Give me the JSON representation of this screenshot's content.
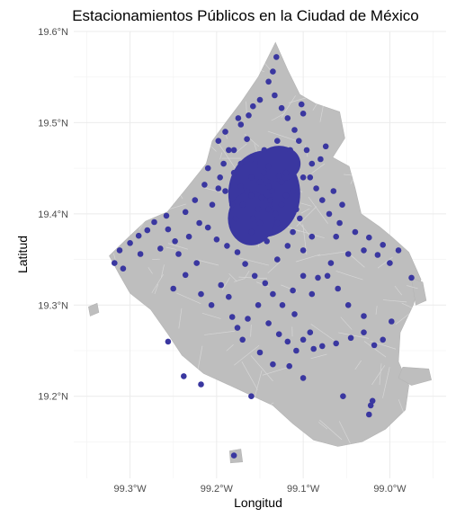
{
  "chart_data": {
    "type": "scatter",
    "title": "Estacionamientos Públicos en la Ciudad de México",
    "xlabel": "Longitud",
    "ylabel": "Latitud",
    "xlim": [
      -99.365,
      -98.935
    ],
    "ylim": [
      19.11,
      19.6
    ],
    "x_ticks": [
      -99.3,
      -99.2,
      -99.1,
      -99.0
    ],
    "x_tick_labels": [
      "99.3°W",
      "99.2°W",
      "99.1°W",
      "99.0°W"
    ],
    "y_ticks": [
      19.2,
      19.3,
      19.4,
      19.5,
      19.6
    ],
    "y_tick_labels": [
      "19.2°N",
      "19.3°N",
      "19.4°N",
      "19.5°N",
      "19.6°N"
    ],
    "grid": true,
    "colors": {
      "points": "#3a37a0",
      "area": "#bebebe",
      "grid": "#ebebeb"
    },
    "layers": [
      {
        "name": "city-boundary",
        "kind": "polygon",
        "fill": "#bebebe",
        "lonlat": [
          [
            -99.132,
            19.588
          ],
          [
            -99.118,
            19.558
          ],
          [
            -99.104,
            19.531
          ],
          [
            -99.086,
            19.521
          ],
          [
            -99.058,
            19.512
          ],
          [
            -99.052,
            19.483
          ],
          [
            -99.066,
            19.462
          ],
          [
            -99.047,
            19.452
          ],
          [
            -99.04,
            19.428
          ],
          [
            -99.033,
            19.4
          ],
          [
            -99.012,
            19.386
          ],
          [
            -98.998,
            19.375
          ],
          [
            -98.978,
            19.358
          ],
          [
            -98.964,
            19.328
          ],
          [
            -98.973,
            19.3
          ],
          [
            -98.988,
            19.27
          ],
          [
            -98.99,
            19.238
          ],
          [
            -98.978,
            19.212
          ],
          [
            -98.982,
            19.185
          ],
          [
            -99.005,
            19.164
          ],
          [
            -99.032,
            19.15
          ],
          [
            -99.06,
            19.145
          ],
          [
            -99.088,
            19.152
          ],
          [
            -99.112,
            19.17
          ],
          [
            -99.135,
            19.19
          ],
          [
            -99.16,
            19.201
          ],
          [
            -99.185,
            19.212
          ],
          [
            -99.215,
            19.225
          ],
          [
            -99.24,
            19.245
          ],
          [
            -99.256,
            19.268
          ],
          [
            -99.276,
            19.295
          ],
          [
            -99.3,
            19.313
          ],
          [
            -99.312,
            19.333
          ],
          [
            -99.324,
            19.354
          ],
          [
            -99.3,
            19.376
          ],
          [
            -99.282,
            19.392
          ],
          [
            -99.257,
            19.402
          ],
          [
            -99.233,
            19.43
          ],
          [
            -99.212,
            19.455
          ],
          [
            -99.205,
            19.48
          ],
          [
            -99.188,
            19.502
          ],
          [
            -99.172,
            19.522
          ],
          [
            -99.152,
            19.55
          ]
        ]
      },
      {
        "name": "islet-east",
        "kind": "polygon",
        "fill": "#bebebe",
        "lonlat": [
          [
            -98.975,
            19.33
          ],
          [
            -98.962,
            19.325
          ],
          [
            -98.958,
            19.305
          ],
          [
            -98.97,
            19.3
          ]
        ]
      },
      {
        "name": "islet-southeast",
        "kind": "polygon",
        "fill": "#bebebe",
        "lonlat": [
          [
            -98.985,
            19.232
          ],
          [
            -98.955,
            19.23
          ],
          [
            -98.952,
            19.218
          ],
          [
            -98.975,
            19.212
          ],
          [
            -98.99,
            19.22
          ]
        ]
      },
      {
        "name": "islet-west",
        "kind": "polygon",
        "fill": "#bebebe",
        "lonlat": [
          [
            -99.348,
            19.298
          ],
          [
            -99.338,
            19.302
          ],
          [
            -99.336,
            19.292
          ],
          [
            -99.346,
            19.288
          ]
        ]
      },
      {
        "name": "islet-south",
        "kind": "polygon",
        "fill": "#bebebe",
        "lonlat": [
          [
            -99.185,
            19.14
          ],
          [
            -99.172,
            19.142
          ],
          [
            -99.17,
            19.128
          ],
          [
            -99.184,
            19.127
          ]
        ]
      }
    ],
    "series": [
      {
        "points": [
          [
            -99.131,
            19.572
          ],
          [
            -99.135,
            19.556
          ],
          [
            -99.14,
            19.545
          ],
          [
            -99.15,
            19.525
          ],
          [
            -99.158,
            19.518
          ],
          [
            -99.163,
            19.508
          ],
          [
            -99.172,
            19.498
          ],
          [
            -99.133,
            19.53
          ],
          [
            -99.165,
            19.482
          ],
          [
            -99.18,
            19.47
          ],
          [
            -99.192,
            19.455
          ],
          [
            -99.21,
            19.45
          ],
          [
            -99.214,
            19.432
          ],
          [
            -99.198,
            19.428
          ],
          [
            -99.225,
            19.415
          ],
          [
            -99.236,
            19.402
          ],
          [
            -99.258,
            19.398
          ],
          [
            -99.272,
            19.391
          ],
          [
            -99.28,
            19.382
          ],
          [
            -99.29,
            19.376
          ],
          [
            -99.3,
            19.368
          ],
          [
            -99.312,
            19.36
          ],
          [
            -99.318,
            19.346
          ],
          [
            -99.308,
            19.34
          ],
          [
            -99.288,
            19.356
          ],
          [
            -99.256,
            19.383
          ],
          [
            -99.244,
            19.356
          ],
          [
            -99.236,
            19.333
          ],
          [
            -99.223,
            19.346
          ],
          [
            -99.25,
            19.318
          ],
          [
            -99.218,
            19.312
          ],
          [
            -99.206,
            19.3
          ],
          [
            -99.195,
            19.322
          ],
          [
            -99.186,
            19.309
          ],
          [
            -99.182,
            19.287
          ],
          [
            -99.176,
            19.275
          ],
          [
            -99.17,
            19.262
          ],
          [
            -99.164,
            19.285
          ],
          [
            -99.152,
            19.3
          ],
          [
            -99.14,
            19.28
          ],
          [
            -99.128,
            19.268
          ],
          [
            -99.118,
            19.26
          ],
          [
            -99.108,
            19.25
          ],
          [
            -99.1,
            19.262
          ],
          [
            -99.092,
            19.27
          ],
          [
            -99.088,
            19.252
          ],
          [
            -99.078,
            19.255
          ],
          [
            -99.062,
            19.258
          ],
          [
            -99.045,
            19.264
          ],
          [
            -99.03,
            19.27
          ],
          [
            -99.018,
            19.256
          ],
          [
            -99.008,
            19.262
          ],
          [
            -98.998,
            19.282
          ],
          [
            -99.03,
            19.288
          ],
          [
            -99.048,
            19.3
          ],
          [
            -99.06,
            19.318
          ],
          [
            -99.072,
            19.332
          ],
          [
            -99.083,
            19.33
          ],
          [
            -99.09,
            19.312
          ],
          [
            -99.1,
            19.332
          ],
          [
            -99.112,
            19.316
          ],
          [
            -99.124,
            19.3
          ],
          [
            -99.135,
            19.312
          ],
          [
            -99.144,
            19.324
          ],
          [
            -99.156,
            19.332
          ],
          [
            -99.167,
            19.345
          ],
          [
            -99.176,
            19.358
          ],
          [
            -99.188,
            19.365
          ],
          [
            -99.2,
            19.372
          ],
          [
            -99.21,
            19.385
          ],
          [
            -99.068,
            19.346
          ],
          [
            -99.048,
            19.356
          ],
          [
            -99.03,
            19.36
          ],
          [
            -99.014,
            19.355
          ],
          [
            -99.0,
            19.346
          ],
          [
            -98.99,
            19.36
          ],
          [
            -98.975,
            19.33
          ],
          [
            -99.04,
            19.38
          ],
          [
            -99.058,
            19.39
          ],
          [
            -99.07,
            19.4
          ],
          [
            -99.078,
            19.415
          ],
          [
            -99.085,
            19.428
          ],
          [
            -99.092,
            19.44
          ],
          [
            -99.09,
            19.455
          ],
          [
            -99.096,
            19.47
          ],
          [
            -99.105,
            19.48
          ],
          [
            -99.11,
            19.492
          ],
          [
            -99.118,
            19.505
          ],
          [
            -99.125,
            19.516
          ],
          [
            -99.08,
            19.46
          ],
          [
            -99.074,
            19.474
          ],
          [
            -99.1,
            19.51
          ],
          [
            -99.102,
            19.52
          ],
          [
            -99.065,
            19.425
          ],
          [
            -99.055,
            19.41
          ],
          [
            -99.062,
            19.375
          ],
          [
            -99.024,
            19.374
          ],
          [
            -99.008,
            19.366
          ],
          [
            -99.256,
            19.26
          ],
          [
            -99.238,
            19.222
          ],
          [
            -99.218,
            19.213
          ],
          [
            -99.16,
            19.2
          ],
          [
            -99.116,
            19.233
          ],
          [
            -99.1,
            19.22
          ],
          [
            -99.054,
            19.2
          ],
          [
            -99.022,
            19.19
          ],
          [
            -99.024,
            19.18
          ],
          [
            -99.02,
            19.195
          ],
          [
            -99.18,
            19.135
          ],
          [
            -99.135,
            19.235
          ],
          [
            -99.15,
            19.248
          ],
          [
            -99.11,
            19.29
          ],
          [
            -99.13,
            19.35
          ],
          [
            -99.118,
            19.365
          ],
          [
            -99.1,
            19.36
          ],
          [
            -99.09,
            19.375
          ],
          [
            -99.104,
            19.395
          ],
          [
            -99.15,
            19.39
          ],
          [
            -99.14,
            19.405
          ],
          [
            -99.16,
            19.42
          ],
          [
            -99.172,
            19.43
          ],
          [
            -99.18,
            19.445
          ],
          [
            -99.186,
            19.47
          ],
          [
            -99.198,
            19.48
          ],
          [
            -99.19,
            19.49
          ],
          [
            -99.175,
            19.505
          ],
          [
            -99.205,
            19.41
          ],
          [
            -99.22,
            19.39
          ],
          [
            -99.232,
            19.375
          ],
          [
            -99.248,
            19.37
          ],
          [
            -99.265,
            19.362
          ],
          [
            -99.12,
            19.445
          ],
          [
            -99.14,
            19.452
          ],
          [
            -99.16,
            19.46
          ],
          [
            -99.145,
            19.47
          ],
          [
            -99.13,
            19.48
          ],
          [
            -99.115,
            19.47
          ],
          [
            -99.136,
            19.425
          ],
          [
            -99.15,
            19.435
          ],
          [
            -99.125,
            19.41
          ],
          [
            -99.112,
            19.425
          ],
          [
            -99.1,
            19.44
          ],
          [
            -99.13,
            19.39
          ],
          [
            -99.112,
            19.38
          ],
          [
            -99.142,
            19.37
          ],
          [
            -99.16,
            19.38
          ],
          [
            -99.178,
            19.395
          ],
          [
            -99.17,
            19.41
          ],
          [
            -99.158,
            19.395
          ],
          [
            -99.125,
            19.435
          ],
          [
            -99.145,
            19.445
          ],
          [
            -99.138,
            19.415
          ],
          [
            -99.152,
            19.405
          ],
          [
            -99.132,
            19.4
          ],
          [
            -99.16,
            19.44
          ],
          [
            -99.12,
            19.42
          ],
          [
            -99.14,
            19.43
          ],
          [
            -99.148,
            19.418
          ],
          [
            -99.128,
            19.442
          ],
          [
            -99.165,
            19.425
          ],
          [
            -99.108,
            19.405
          ],
          [
            -99.182,
            19.41
          ],
          [
            -99.19,
            19.425
          ],
          [
            -99.196,
            19.44
          ],
          [
            -99.172,
            19.455
          ]
        ]
      }
    ]
  }
}
